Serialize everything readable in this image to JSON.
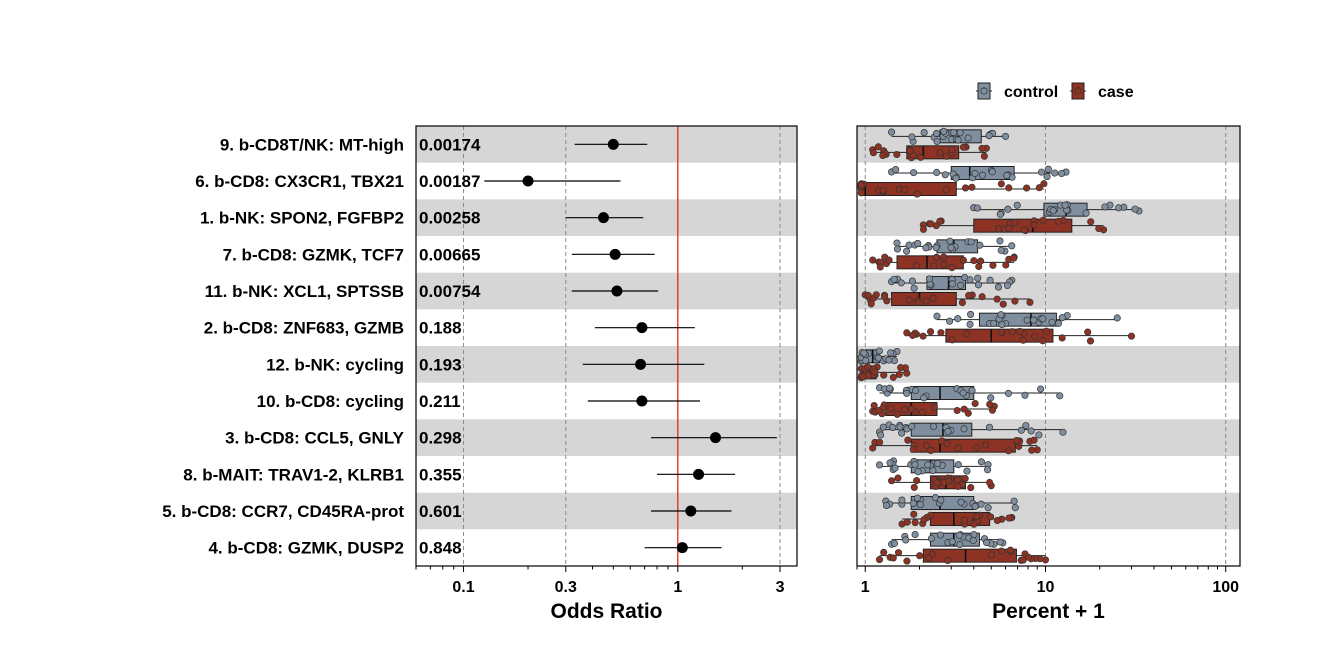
{
  "chart_data": [
    {
      "type": "forest",
      "xlabel": "Odds Ratio",
      "x_scale": "log",
      "xlim": [
        0.06,
        3.6
      ],
      "x_ticks": [
        0.1,
        0.3,
        1,
        3
      ],
      "x_tick_labels": [
        "0.1",
        "0.3",
        "1",
        "3"
      ],
      "reference_line": 1,
      "reference_color": "#e8221b",
      "rows": [
        {
          "label": "9. b-CD8T/NK: MT-high",
          "pvalue": "0.00174",
          "or": 0.5,
          "lo": 0.33,
          "hi": 0.72
        },
        {
          "label": "6. b-CD8: CX3CR1, TBX21",
          "pvalue": "0.00187",
          "or": 0.2,
          "lo": 0.125,
          "hi": 0.54
        },
        {
          "label": "1. b-NK: SPON2, FGFBP2",
          "pvalue": "0.00258",
          "or": 0.45,
          "lo": 0.3,
          "hi": 0.69
        },
        {
          "label": "7. b-CD8: GZMK, TCF7",
          "pvalue": "0.00665",
          "or": 0.51,
          "lo": 0.32,
          "hi": 0.78
        },
        {
          "label": "11. b-NK: XCL1, SPTSSB",
          "pvalue": "0.00754",
          "or": 0.52,
          "lo": 0.32,
          "hi": 0.81
        },
        {
          "label": "2. b-CD8: ZNF683, GZMB",
          "pvalue": "0.188",
          "or": 0.68,
          "lo": 0.41,
          "hi": 1.2
        },
        {
          "label": "12. b-NK: cycling",
          "pvalue": "0.193",
          "or": 0.67,
          "lo": 0.36,
          "hi": 1.33
        },
        {
          "label": "10. b-CD8: cycling",
          "pvalue": "0.211",
          "or": 0.68,
          "lo": 0.38,
          "hi": 1.27
        },
        {
          "label": "3. b-CD8: CCL5, GNLY",
          "pvalue": "0.298",
          "or": 1.5,
          "lo": 0.75,
          "hi": 2.9
        },
        {
          "label": "8. b-MAIT: TRAV1-2, KLRB1",
          "pvalue": "0.355",
          "or": 1.25,
          "lo": 0.8,
          "hi": 1.85
        },
        {
          "label": "5. b-CD8: CCR7, CD45RA-prot",
          "pvalue": "0.601",
          "or": 1.15,
          "lo": 0.75,
          "hi": 1.78
        },
        {
          "label": "4. b-CD8: GZMK, DUSP2",
          "pvalue": "0.848",
          "or": 1.05,
          "lo": 0.7,
          "hi": 1.6
        }
      ]
    },
    {
      "type": "boxplot",
      "xlabel": "Percent + 1",
      "x_scale": "log",
      "xlim": [
        0.9,
        120
      ],
      "x_ticks": [
        1,
        10,
        100
      ],
      "x_tick_labels": [
        "1",
        "10",
        "100"
      ],
      "grid": "dashed at 1, 10, 100",
      "legend_position": "top",
      "series": [
        {
          "name": "control",
          "color": "#7f8fa0"
        },
        {
          "name": "case",
          "color": "#8e3224"
        }
      ],
      "rows": [
        {
          "control": {
            "min": 1.4,
            "q1": 2.6,
            "median": 3.3,
            "q3": 4.4,
            "max": 6.0
          },
          "case": {
            "min": 1.1,
            "q1": 1.7,
            "median": 2.1,
            "q3": 3.3,
            "max": 4.7
          }
        },
        {
          "control": {
            "min": 1.4,
            "q1": 3.0,
            "median": 3.8,
            "q3": 6.7,
            "max": 13.0
          },
          "case": {
            "min": 0.95,
            "q1": 0.95,
            "median": 1.0,
            "q3": 3.2,
            "max": 9.8
          }
        },
        {
          "control": {
            "min": 4.0,
            "q1": 9.8,
            "median": 13.0,
            "q3": 17.0,
            "max": 33.0
          },
          "case": {
            "min": 2.1,
            "q1": 4.0,
            "median": 8.5,
            "q3": 14.0,
            "max": 21.0
          }
        },
        {
          "control": {
            "min": 1.5,
            "q1": 2.5,
            "median": 3.1,
            "q3": 4.2,
            "max": 6.5
          },
          "case": {
            "min": 1.1,
            "q1": 1.5,
            "median": 2.2,
            "q3": 3.5,
            "max": 6.7
          }
        },
        {
          "control": {
            "min": 1.4,
            "q1": 2.2,
            "median": 2.9,
            "q3": 3.6,
            "max": 6.5
          },
          "case": {
            "min": 1.0,
            "q1": 1.4,
            "median": 2.0,
            "q3": 3.2,
            "max": 8.2
          }
        },
        {
          "control": {
            "min": 2.5,
            "q1": 4.3,
            "median": 8.3,
            "q3": 11.5,
            "max": 25.0
          },
          "case": {
            "min": 1.7,
            "q1": 2.8,
            "median": 5.0,
            "q3": 11.0,
            "max": 30.0
          }
        },
        {
          "control": {
            "min": 0.95,
            "q1": 1.0,
            "median": 1.1,
            "q3": 1.2,
            "max": 1.5
          },
          "case": {
            "min": 0.95,
            "q1": 1.0,
            "median": 1.05,
            "q3": 1.15,
            "max": 1.7
          }
        },
        {
          "control": {
            "min": 1.2,
            "q1": 1.8,
            "median": 2.6,
            "q3": 4.0,
            "max": 12.0
          },
          "case": {
            "min": 1.1,
            "q1": 1.3,
            "median": 1.8,
            "q3": 2.5,
            "max": 5.2
          }
        },
        {
          "control": {
            "min": 1.2,
            "q1": 1.8,
            "median": 2.7,
            "q3": 3.9,
            "max": 12.5
          },
          "case": {
            "min": 1.1,
            "q1": 1.8,
            "median": 2.6,
            "q3": 6.8,
            "max": 9.0
          }
        },
        {
          "control": {
            "min": 1.2,
            "q1": 1.8,
            "median": 2.3,
            "q3": 3.1,
            "max": 4.8
          },
          "case": {
            "min": 1.4,
            "q1": 2.3,
            "median": 2.8,
            "q3": 3.6,
            "max": 5.0
          }
        },
        {
          "control": {
            "min": 1.3,
            "q1": 1.8,
            "median": 2.6,
            "q3": 4.0,
            "max": 6.8
          },
          "case": {
            "min": 1.6,
            "q1": 2.3,
            "median": 3.1,
            "q3": 4.9,
            "max": 6.5
          }
        },
        {
          "control": {
            "min": 1.4,
            "q1": 2.3,
            "median": 3.1,
            "q3": 4.3,
            "max": 5.8
          },
          "case": {
            "min": 1.2,
            "q1": 2.1,
            "median": 3.6,
            "q3": 6.9,
            "max": 10.0
          }
        }
      ]
    }
  ]
}
